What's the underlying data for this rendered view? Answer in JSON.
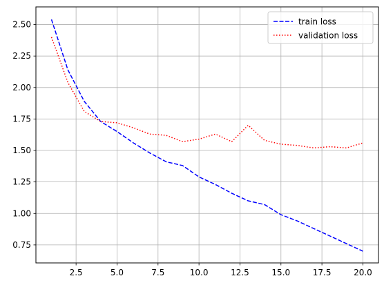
{
  "chart_data": {
    "type": "line",
    "title": "",
    "xlabel": "",
    "ylabel": "",
    "xlim": [
      0.05,
      20.95
    ],
    "ylim": [
      0.607,
      2.64
    ],
    "xticks": [
      2.5,
      5.0,
      7.5,
      10.0,
      12.5,
      15.0,
      17.5,
      20.0
    ],
    "xtick_labels": [
      "2.5",
      "5.0",
      "7.5",
      "10.0",
      "12.5",
      "15.0",
      "17.5",
      "20.0"
    ],
    "yticks": [
      0.75,
      1.0,
      1.25,
      1.5,
      1.75,
      2.0,
      2.25,
      2.5
    ],
    "ytick_labels": [
      "0.75",
      "1.00",
      "1.25",
      "1.50",
      "1.75",
      "2.00",
      "2.25",
      "2.50"
    ],
    "grid": true,
    "legend_position": "upper right",
    "x": [
      1,
      2,
      3,
      4,
      5,
      6,
      7,
      8,
      9,
      10,
      11,
      12,
      13,
      14,
      15,
      16,
      17,
      18,
      19,
      20
    ],
    "series": [
      {
        "name": "train loss",
        "color": "#0000ff",
        "style": "dashed",
        "values": [
          2.54,
          2.14,
          1.89,
          1.73,
          1.65,
          1.56,
          1.48,
          1.41,
          1.38,
          1.29,
          1.23,
          1.16,
          1.1,
          1.07,
          0.99,
          0.94,
          0.88,
          0.82,
          0.76,
          0.7
        ]
      },
      {
        "name": "validation loss",
        "color": "#ff0000",
        "style": "dotted",
        "values": [
          2.4,
          2.04,
          1.81,
          1.73,
          1.72,
          1.68,
          1.63,
          1.62,
          1.57,
          1.59,
          1.63,
          1.57,
          1.7,
          1.58,
          1.55,
          1.54,
          1.52,
          1.53,
          1.52,
          1.56
        ]
      }
    ]
  }
}
